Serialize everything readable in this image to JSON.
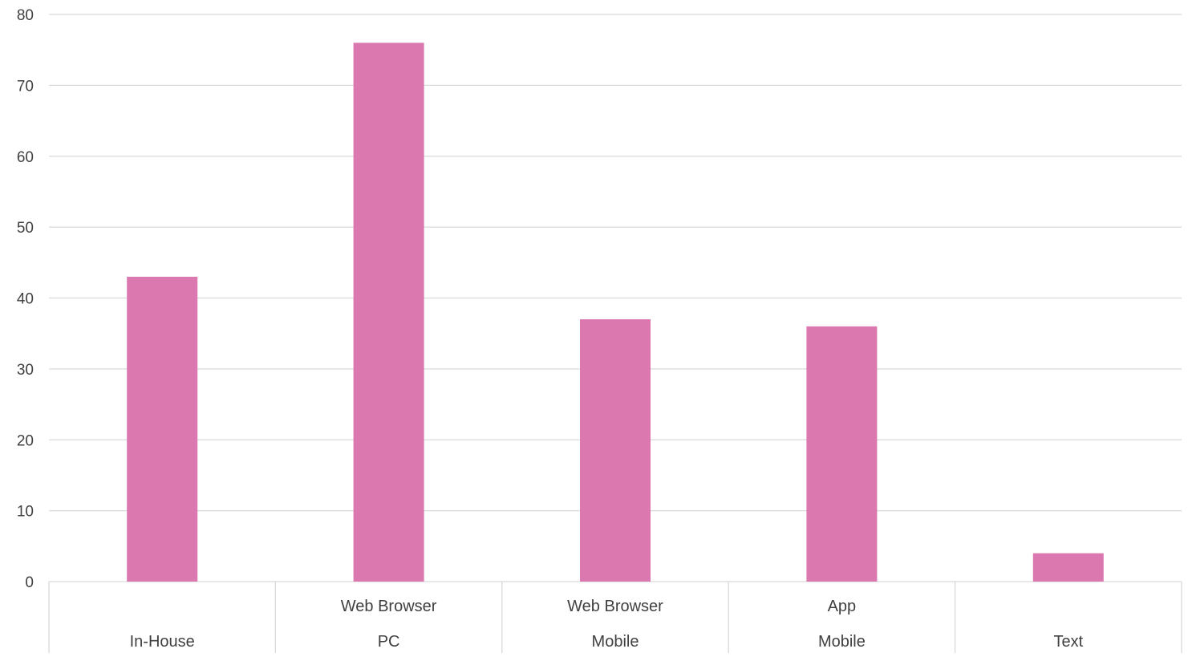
{
  "chart_data": {
    "type": "bar",
    "categories": [
      [
        "",
        "In-House"
      ],
      [
        "Web Browser",
        "PC"
      ],
      [
        "Web Browser",
        "Mobile"
      ],
      [
        "App",
        "Mobile"
      ],
      [
        "",
        "Text"
      ]
    ],
    "values": [
      43,
      76,
      37,
      36,
      4
    ],
    "ylim": [
      0,
      80
    ],
    "yticks": [
      "0",
      "10",
      "20",
      "30",
      "40",
      "50",
      "60",
      "70",
      "80"
    ],
    "grid": true,
    "legend": "none",
    "colors": {
      "bar": "#DA78AF",
      "grid": "#D9D9D9",
      "text": "#404040"
    }
  }
}
